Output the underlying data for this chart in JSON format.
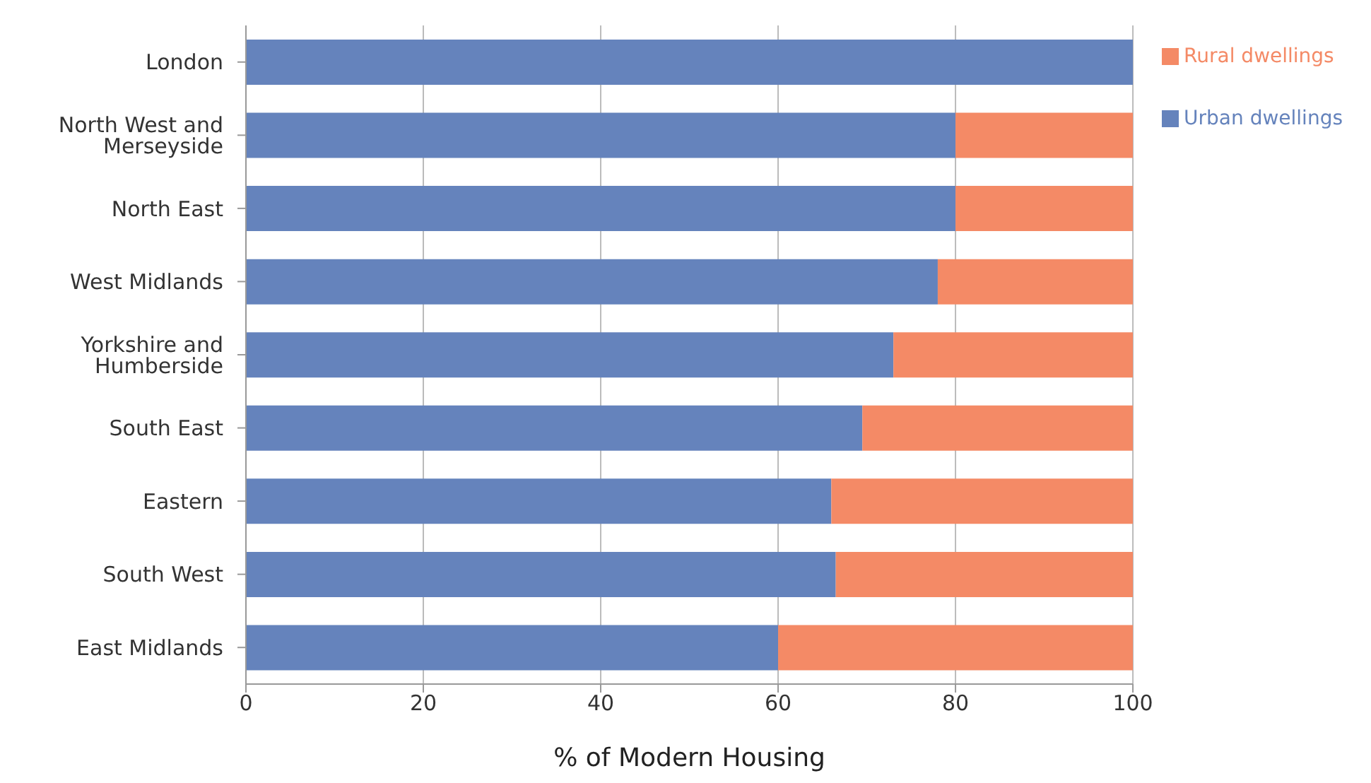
{
  "chart_data": {
    "type": "bar",
    "orientation": "horizontal",
    "stacked": true,
    "xlabel": "% of Modern Housing",
    "categories": [
      "London",
      "North West and Merseyside",
      "North East",
      "West Midlands",
      "Yorkshire and Humberside",
      "South East",
      "Eastern",
      "South West",
      "East Midlands"
    ],
    "series": [
      {
        "name": "Urban dwellings",
        "color": "#6583bc",
        "values": [
          100,
          80,
          80,
          78,
          73,
          69.5,
          66,
          66.5,
          60
        ]
      },
      {
        "name": "Rural dwellings",
        "color": "#f48a66",
        "values": [
          0,
          20,
          20,
          22,
          27,
          30.5,
          34,
          33.5,
          40
        ]
      }
    ],
    "xlim": [
      0,
      100
    ],
    "xticks": [
      0,
      20,
      40,
      60,
      80,
      100
    ],
    "grid": "x",
    "legend": "top right"
  }
}
